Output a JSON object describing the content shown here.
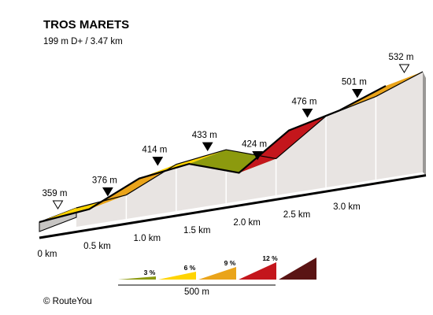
{
  "chart_data": {
    "type": "area",
    "title": "TROS MARETS",
    "subtitle": "199 m D+ / 3.47 km",
    "x_unit": "km",
    "y_unit": "m",
    "xlim": [
      0,
      3.47
    ],
    "profile_points": [
      {
        "km": 0.0,
        "elevation": 359
      },
      {
        "km": 0.5,
        "elevation": 376
      },
      {
        "km": 1.0,
        "elevation": 414
      },
      {
        "km": 1.5,
        "elevation": 433
      },
      {
        "km": 2.0,
        "elevation": 424
      },
      {
        "km": 2.5,
        "elevation": 476
      },
      {
        "km": 3.0,
        "elevation": 501
      },
      {
        "km": 3.47,
        "elevation": 532
      }
    ],
    "segments": [
      {
        "from_km": 0.0,
        "to_km": 0.5,
        "grade_class": "3-6"
      },
      {
        "from_km": 0.5,
        "to_km": 1.0,
        "grade_class": "6-9"
      },
      {
        "from_km": 1.0,
        "to_km": 1.5,
        "grade_class": "3-6"
      },
      {
        "from_km": 1.5,
        "to_km": 2.0,
        "grade_class": "0-3"
      },
      {
        "from_km": 2.0,
        "to_km": 2.5,
        "grade_class": "9-12"
      },
      {
        "from_km": 2.5,
        "to_km": 3.0,
        "grade_class": "3-6"
      },
      {
        "from_km": 3.0,
        "to_km": 3.47,
        "grade_class": "6-9"
      }
    ],
    "elevation_labels": [
      "359 m",
      "376 m",
      "414 m",
      "433 m",
      "424 m",
      "476 m",
      "501 m",
      "532 m"
    ],
    "tick_labels": [
      "0 km",
      "0.5 km",
      "1.0 km",
      "1.5 km",
      "2.0 km",
      "2.5 km",
      "3.0 km"
    ],
    "legend": {
      "entries": [
        {
          "label": "3 %",
          "color": "#8c9a0e"
        },
        {
          "label": "6 %",
          "color": "#ffd400"
        },
        {
          "label": "9 %",
          "color": "#eaa41a"
        },
        {
          "label": "12 %",
          "color": "#c4161c"
        },
        {
          "label": "",
          "color": "#5a1414"
        }
      ],
      "scale_label": "500 m"
    },
    "colors": {
      "0-3": "#8c9a0e",
      "3-6": "#ffd400",
      "6-9": "#eaa41a",
      "9-12": "#c4161c",
      "12+": "#5a1414",
      "wall": "#e8e4e2"
    }
  },
  "credit": "© RouteYou"
}
